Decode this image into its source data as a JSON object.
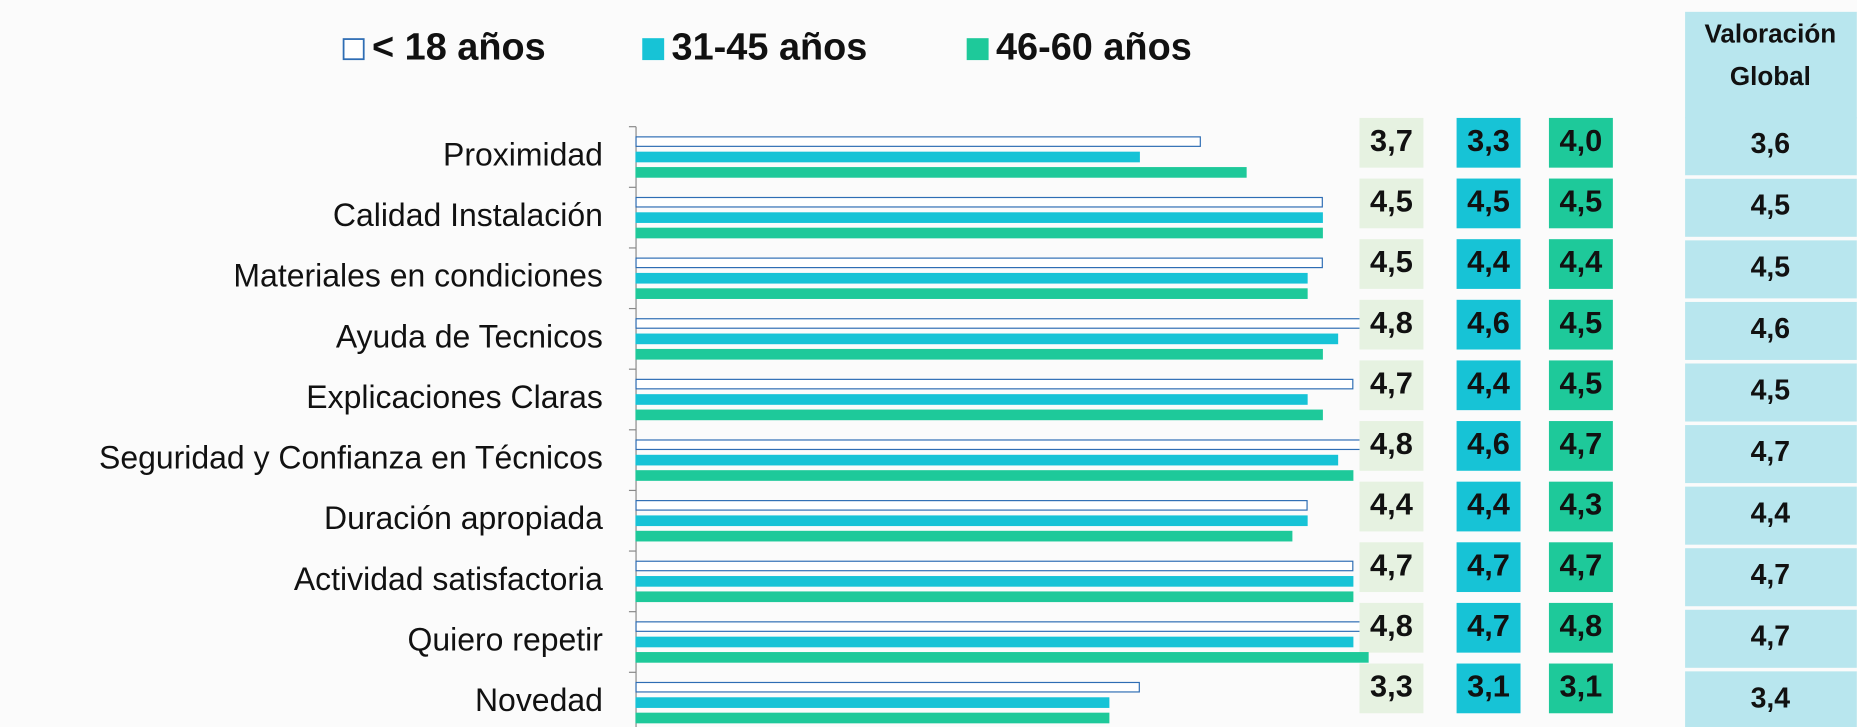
{
  "chart_data": {
    "type": "hbar",
    "categories": [
      "Proximidad",
      "Calidad Instalación",
      "Materiales en condiciones",
      "Ayuda de Tecnicos",
      "Explicaciones Claras",
      "Seguridad y Confianza en Técnicos",
      "Duración apropiada",
      "Actividad satisfactoria",
      "Quiero repetir",
      "Novedad"
    ],
    "series": [
      {
        "name": "< 18 años",
        "color": "#ffffff",
        "stroke": "#2e6db4",
        "label_bg": "#e6f2e1",
        "values": [
          3.7,
          4.5,
          4.5,
          4.8,
          4.7,
          4.8,
          4.4,
          4.7,
          4.8,
          3.3
        ],
        "value_labels": [
          "3,7",
          "4,5",
          "4,5",
          "4,8",
          "4,7",
          "4,8",
          "4,4",
          "4,7",
          "4,8",
          "3,3"
        ]
      },
      {
        "name": "31-45 años",
        "color": "#17c3d6",
        "stroke": "#17c3d6",
        "label_bg": "#17c3d6",
        "values": [
          3.3,
          4.5,
          4.4,
          4.6,
          4.4,
          4.6,
          4.4,
          4.7,
          4.7,
          3.1
        ],
        "value_labels": [
          "3,3",
          "4,5",
          "4,4",
          "4,6",
          "4,4",
          "4,6",
          "4,4",
          "4,7",
          "4,7",
          "3,1"
        ]
      },
      {
        "name": "46-60 años",
        "color": "#1ec99a",
        "stroke": "#1ec99a",
        "label_bg": "#1ec99a",
        "values": [
          4.0,
          4.5,
          4.4,
          4.5,
          4.5,
          4.7,
          4.3,
          4.7,
          4.8,
          3.1
        ],
        "value_labels": [
          "4,0",
          "4,5",
          "4,4",
          "4,5",
          "4,5",
          "4,7",
          "4,3",
          "4,7",
          "4,8",
          "3,1"
        ]
      }
    ],
    "xlim": [
      0,
      5
    ],
    "legend": "top",
    "global": {
      "title": [
        "Valoración",
        "Global"
      ],
      "color": "#b8e6ee",
      "value_labels": [
        "3,6",
        "4,5",
        "4,5",
        "4,6",
        "4,5",
        "4,7",
        "4,4",
        "4,7",
        "4,7",
        "3,4"
      ]
    }
  }
}
